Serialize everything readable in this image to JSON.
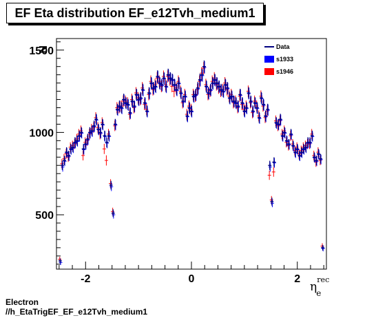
{
  "title": "EF Eta distribution EF_e12Tvh_medium1",
  "footer": {
    "line1": "Electron",
    "line2": "//h_EtaTrigEF_EF_e12Tvh_medium1"
  },
  "chart_data": {
    "type": "scatter",
    "xlabel": "η_e^rec",
    "xlabel_main": "η",
    "xlabel_sub": "e",
    "xlabel_sup": "rec",
    "ylabel": "N",
    "xlim": [
      -2.55,
      2.55
    ],
    "ylim": [
      170,
      1570
    ],
    "x_ticks": [
      -2,
      0,
      2
    ],
    "x_tick_labels": [
      "-2",
      "0",
      "2"
    ],
    "y_ticks": [
      500,
      1000,
      1500
    ],
    "y_tick_labels": [
      "500",
      "1000",
      "1500"
    ],
    "legend_position": "top-right",
    "legend": [
      "Data",
      "s1933",
      "s1946"
    ],
    "colors": {
      "Data": "#000080",
      "s1933": "#0000ff",
      "s1946": "#ff0000",
      "axis": "#000000"
    },
    "x": [
      -2.48,
      -2.44,
      -2.4,
      -2.36,
      -2.32,
      -2.28,
      -2.24,
      -2.2,
      -2.16,
      -2.12,
      -2.08,
      -2.04,
      -2.0,
      -1.96,
      -1.92,
      -1.88,
      -1.84,
      -1.8,
      -1.76,
      -1.72,
      -1.68,
      -1.64,
      -1.6,
      -1.56,
      -1.52,
      -1.48,
      -1.44,
      -1.4,
      -1.36,
      -1.32,
      -1.28,
      -1.24,
      -1.2,
      -1.16,
      -1.12,
      -1.08,
      -1.04,
      -1.0,
      -0.96,
      -0.92,
      -0.88,
      -0.84,
      -0.8,
      -0.76,
      -0.72,
      -0.68,
      -0.64,
      -0.6,
      -0.56,
      -0.52,
      -0.48,
      -0.44,
      -0.4,
      -0.36,
      -0.32,
      -0.28,
      -0.24,
      -0.2,
      -0.16,
      -0.12,
      -0.08,
      -0.04,
      0.0,
      0.04,
      0.08,
      0.12,
      0.16,
      0.2,
      0.24,
      0.28,
      0.32,
      0.36,
      0.4,
      0.44,
      0.48,
      0.52,
      0.56,
      0.6,
      0.64,
      0.68,
      0.72,
      0.76,
      0.8,
      0.84,
      0.88,
      0.92,
      0.96,
      1.0,
      1.04,
      1.08,
      1.12,
      1.16,
      1.2,
      1.24,
      1.28,
      1.32,
      1.36,
      1.4,
      1.44,
      1.48,
      1.52,
      1.56,
      1.6,
      1.64,
      1.68,
      1.72,
      1.76,
      1.8,
      1.84,
      1.88,
      1.92,
      1.96,
      2.0,
      2.04,
      2.08,
      2.12,
      2.16,
      2.2,
      2.24,
      2.28,
      2.32,
      2.36,
      2.4,
      2.44,
      2.48
    ],
    "series": [
      {
        "name": "Data",
        "values": [
          220,
          800,
          830,
          880,
          860,
          900,
          910,
          940,
          950,
          980,
          1000,
          900,
          930,
          960,
          1000,
          1010,
          1040,
          1080,
          1020,
          1000,
          1050,
          980,
          940,
          980,
          680,
          510,
          1050,
          1140,
          1160,
          1150,
          1200,
          1180,
          1170,
          1120,
          1190,
          1160,
          1230,
          1200,
          1210,
          1260,
          1180,
          1130,
          1240,
          1300,
          1270,
          1280,
          1340,
          1300,
          1290,
          1330,
          1280,
          1350,
          1330,
          1320,
          1290,
          1260,
          1300,
          1240,
          1190,
          1220,
          1100,
          1150,
          1130,
          1220,
          1230,
          1270,
          1320,
          1350,
          1400,
          1280,
          1240,
          1260,
          1300,
          1320,
          1300,
          1280,
          1260,
          1250,
          1290,
          1270,
          1210,
          1220,
          1190,
          1180,
          1160,
          1230,
          1180,
          1130,
          1150,
          1240,
          1190,
          1130,
          1180,
          1150,
          1090,
          1210,
          1170,
          1100,
          1140,
          800,
          580,
          820,
          1060,
          1050,
          1080,
          980,
          1000,
          950,
          930,
          990,
          920,
          880,
          900,
          860,
          880,
          900,
          910,
          940,
          940,
          980,
          850,
          830,
          870,
          840,
          300
        ]
      },
      {
        "name": "s1933",
        "values": [
          210,
          790,
          825,
          875,
          855,
          895,
          905,
          935,
          945,
          975,
          995,
          895,
          925,
          955,
          995,
          1005,
          1035,
          1075,
          1015,
          995,
          1045,
          975,
          935,
          975,
          670,
          500,
          1045,
          1135,
          1155,
          1145,
          1195,
          1175,
          1165,
          1115,
          1185,
          1155,
          1225,
          1195,
          1205,
          1255,
          1175,
          1125,
          1235,
          1295,
          1265,
          1275,
          1335,
          1295,
          1285,
          1325,
          1275,
          1345,
          1325,
          1315,
          1285,
          1255,
          1295,
          1235,
          1185,
          1215,
          1095,
          1145,
          1125,
          1215,
          1225,
          1265,
          1315,
          1345,
          1395,
          1275,
          1235,
          1255,
          1295,
          1315,
          1295,
          1275,
          1255,
          1245,
          1285,
          1265,
          1205,
          1215,
          1185,
          1175,
          1155,
          1225,
          1175,
          1125,
          1145,
          1235,
          1185,
          1125,
          1175,
          1145,
          1085,
          1205,
          1165,
          1095,
          1135,
          790,
          570,
          815,
          1055,
          1045,
          1075,
          975,
          995,
          945,
          925,
          985,
          915,
          875,
          895,
          855,
          875,
          895,
          905,
          935,
          935,
          975,
          845,
          825,
          865,
          835,
          295
        ]
      },
      {
        "name": "s1946",
        "values": [
          230,
          810,
          840,
          870,
          850,
          910,
          920,
          930,
          960,
          990,
          1010,
          860,
          940,
          950,
          990,
          1020,
          1030,
          1090,
          1030,
          990,
          1060,
          900,
          830,
          990,
          690,
          520,
          1040,
          1150,
          1150,
          1160,
          1190,
          1190,
          1180,
          1110,
          1200,
          1150,
          1240,
          1210,
          1200,
          1270,
          1170,
          1140,
          1230,
          1310,
          1260,
          1290,
          1330,
          1310,
          1280,
          1340,
          1290,
          1340,
          1320,
          1280,
          1250,
          1270,
          1310,
          1250,
          1180,
          1230,
          1110,
          1160,
          1140,
          1230,
          1220,
          1260,
          1310,
          1360,
          1390,
          1290,
          1230,
          1250,
          1310,
          1330,
          1290,
          1270,
          1250,
          1260,
          1300,
          1260,
          1220,
          1230,
          1180,
          1190,
          1150,
          1220,
          1170,
          1140,
          1160,
          1250,
          1180,
          1120,
          1190,
          1160,
          1100,
          1220,
          1160,
          1090,
          1130,
          740,
          590,
          760,
          1070,
          1040,
          1070,
          990,
          1010,
          940,
          920,
          980,
          930,
          890,
          910,
          870,
          890,
          910,
          920,
          930,
          930,
          990,
          860,
          820,
          880,
          830,
          310
        ]
      }
    ],
    "errors": [
      15,
      28,
      29,
      30,
      29,
      30,
      30,
      31,
      31,
      31,
      32,
      30,
      30,
      31,
      32,
      32,
      32,
      33,
      32,
      32,
      32,
      31,
      31,
      31,
      26,
      23,
      32,
      34,
      34,
      34,
      35,
      34,
      34,
      33,
      35,
      34,
      35,
      35,
      35,
      36,
      34,
      34,
      35,
      36,
      36,
      36,
      37,
      36,
      36,
      36,
      36,
      37,
      36,
      36,
      36,
      35,
      36,
      35,
      34,
      35,
      33,
      34,
      34,
      35,
      35,
      36,
      36,
      37,
      37,
      36,
      35,
      35,
      36,
      36,
      36,
      36,
      35,
      35,
      36,
      36,
      35,
      35,
      34,
      34,
      34,
      35,
      34,
      34,
      34,
      35,
      34,
      34,
      34,
      34,
      33,
      35,
      34,
      33,
      34,
      28,
      24,
      29,
      33,
      32,
      33,
      31,
      32,
      31,
      30,
      31,
      30,
      30,
      30,
      29,
      30,
      30,
      30,
      31,
      31,
      31,
      29,
      29,
      30,
      29,
      17
    ]
  }
}
